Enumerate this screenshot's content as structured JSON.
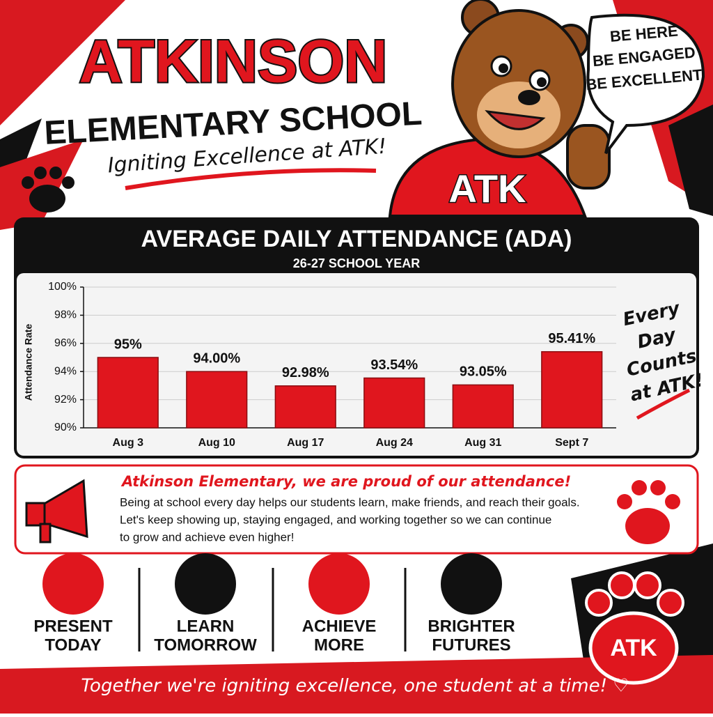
{
  "header": {
    "title": "ATKINSON",
    "subtitle": "ELEMENTARY SCHOOL",
    "tagline": "Igniting Excellence at ATK!"
  },
  "mascot": {
    "shirt": "ATK",
    "bubble": [
      "BE HERE",
      "BE ENGAGED",
      "BE EXCELLENT"
    ]
  },
  "chart_data": {
    "type": "bar",
    "title": "AVERAGE DAILY ATTENDANCE (ADA)",
    "subtitle": "26-27 SCHOOL YEAR",
    "y_label": "Attendance Rate",
    "categories": [
      "Aug 3",
      "Aug 10",
      "Aug 17",
      "Aug 24",
      "Aug 31",
      "Sept 7"
    ],
    "values": [
      95,
      94.0,
      92.98,
      93.54,
      93.05,
      95.41
    ],
    "value_labels": [
      "95%",
      "94.00%",
      "92.98%",
      "93.54%",
      "93.05%",
      "95.41%"
    ],
    "color": "#e0161e",
    "ylim": [
      90,
      100
    ],
    "yticks": [
      {
        "value": 90,
        "label": "90%"
      },
      {
        "value": 92,
        "label": "92%"
      },
      {
        "value": 94,
        "label": "94%"
      },
      {
        "value": 96,
        "label": "96%"
      },
      {
        "value": 98,
        "label": "98%"
      },
      {
        "value": 100,
        "label": "100%"
      }
    ],
    "grid": true
  },
  "side_note": [
    "Every",
    "Day",
    "Counts",
    "at ATK!"
  ],
  "message": {
    "title": "Atkinson Elementary, we are proud of our attendance!",
    "body": [
      "Being at school every day helps our students learn, make friends, and reach their goals.",
      "Let's keep showing up, staying engaged, and working together so we can continue",
      "to grow and achieve even higher!"
    ]
  },
  "pillars": [
    [
      "PRESENT",
      "TODAY"
    ],
    [
      "LEARN",
      "TOMORROW"
    ],
    [
      "ACHIEVE",
      "MORE"
    ],
    [
      "BRIGHTER",
      "FUTURES"
    ]
  ],
  "badge": "ATK",
  "footer": "Together we're igniting excellence, one student at a time! ♡"
}
